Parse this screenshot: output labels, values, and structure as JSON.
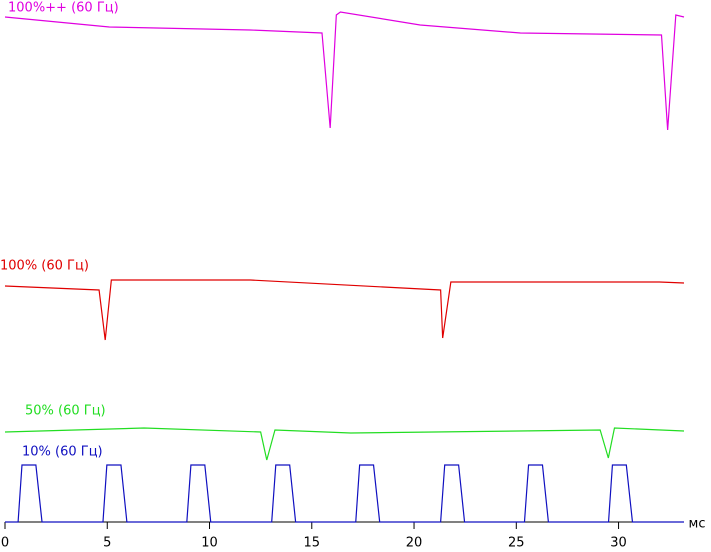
{
  "chart_data": {
    "type": "line",
    "xlabel": "мс",
    "xlim": [
      0,
      33.2
    ],
    "xticks": [
      0,
      5,
      10,
      15,
      20,
      25,
      30
    ],
    "series": [
      {
        "name": "100%++ (60 Гц)",
        "color": "#e000e0",
        "x": [
          0,
          5.1,
          12.0,
          15.5,
          15.9,
          16.2,
          16.4,
          20.3,
          25.2,
          32.1,
          32.4,
          32.8,
          33.2
        ],
        "values": [
          123,
          113,
          110,
          107,
          12,
          125,
          128,
          115,
          107,
          105,
          10,
          125,
          123
        ]
      },
      {
        "name": "100% (60 Гц)",
        "color": "#e00000",
        "x": [
          0,
          4.6,
          4.9,
          5.2,
          12.0,
          21.3,
          21.4,
          21.8,
          32.0,
          33.2
        ],
        "values": [
          64,
          60,
          10,
          70,
          70,
          60,
          12,
          68,
          68,
          67
        ]
      },
      {
        "name": "50% (60 Гц)",
        "color": "#22dd22",
        "x": [
          0,
          6.8,
          12.5,
          12.8,
          13.2,
          16.9,
          29.1,
          29.5,
          29.8,
          33.2
        ],
        "values": [
          38,
          42,
          38,
          10,
          40,
          37,
          40,
          12,
          42,
          39
        ]
      },
      {
        "name": "10% (60 Гц)",
        "color": "#1010c0",
        "x": [
          0,
          0.64,
          0.83,
          1.51,
          1.81,
          4.79,
          4.98,
          5.67,
          5.96,
          8.89,
          9.09,
          9.77,
          10.06,
          13.04,
          13.24,
          13.92,
          14.21,
          17.15,
          17.34,
          18.02,
          18.32,
          21.3,
          21.5,
          22.18,
          22.47,
          25.4,
          25.6,
          26.28,
          26.57,
          29.51,
          29.7,
          30.38,
          30.68,
          33.2
        ],
        "values": [
          0,
          0,
          57,
          57,
          0,
          0,
          57,
          57,
          0,
          0,
          57,
          57,
          0,
          0,
          57,
          57,
          0,
          0,
          57,
          57,
          0,
          0,
          57,
          57,
          0,
          0,
          57,
          57,
          0,
          0,
          57,
          57,
          0,
          0
        ]
      }
    ]
  }
}
